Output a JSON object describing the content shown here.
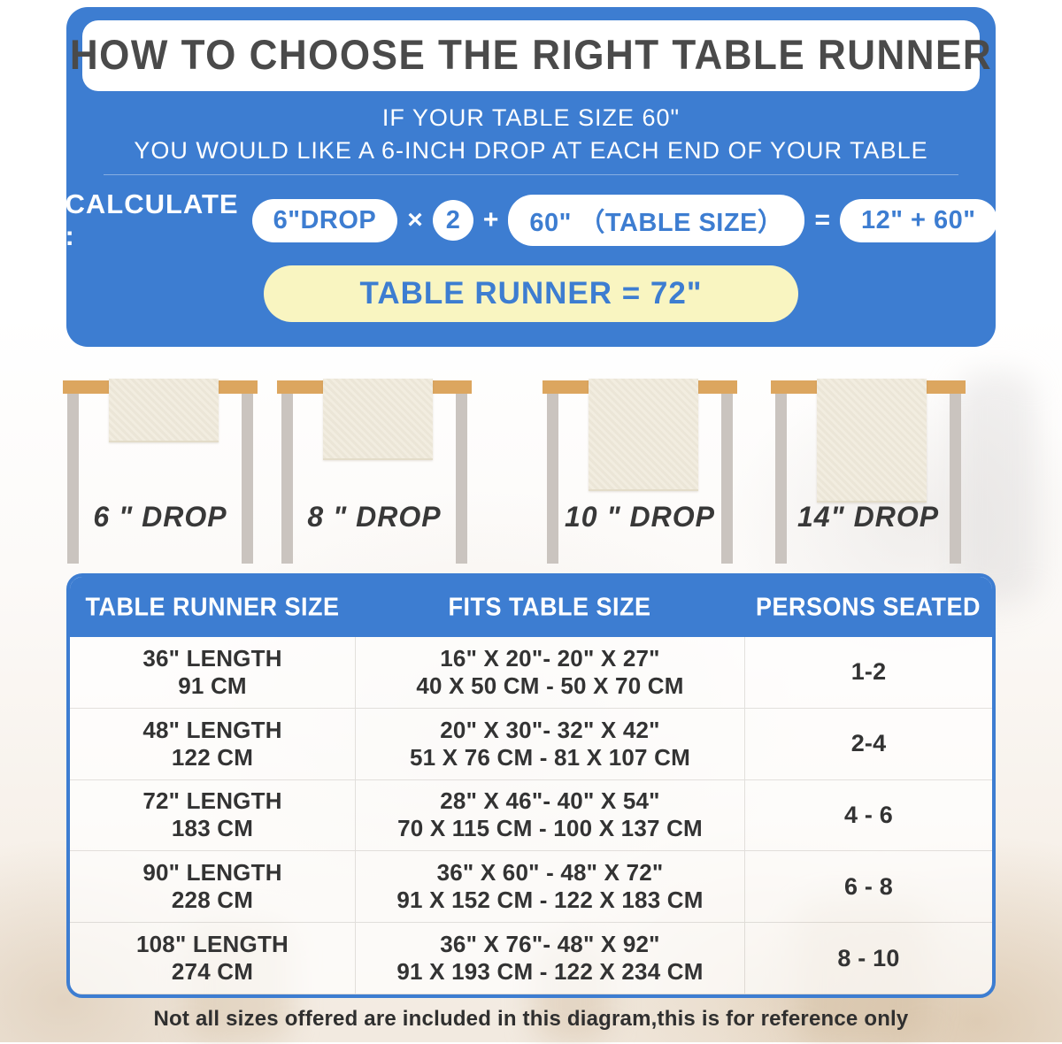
{
  "colors": {
    "accent_blue": "#3d7dd1",
    "highlight_yellow": "#f9f5c1",
    "tabletop_wood": "#dca65f",
    "leg_gray": "#cac4bf",
    "runner_cream": "#f2ede0"
  },
  "hero": {
    "title": "HOW TO CHOOSE THE RIGHT TABLE RUNNER",
    "sub_line1": "IF YOUR TABLE SIZE 60\"",
    "sub_line2": "YOU WOULD LIKE A 6-INCH DROP AT EACH END OF YOUR TABLE",
    "calculate_label": "CALCULATE :",
    "calc": {
      "drop_pill": "6\"DROP",
      "times": "×",
      "multiplier": "2",
      "plus": "+",
      "table_size_pill": "60\" （TABLE SIZE）",
      "equals": "=",
      "result_pill": "12\" + 60\""
    },
    "result_banner": "TABLE RUNNER = 72\""
  },
  "drops": [
    {
      "label": "6 \" DROP"
    },
    {
      "label": "8 \" DROP"
    },
    {
      "label": "10 \" DROP"
    },
    {
      "label": "14\" DROP"
    }
  ],
  "size_table": {
    "columns": [
      "TABLE RUNNER SIZE",
      "FITS TABLE SIZE",
      "PERSONS SEATED"
    ],
    "rows": [
      {
        "runner_in": "36\" LENGTH",
        "runner_cm": "91 CM",
        "fits_in": "16\" X 20\"- 20\" X 27\"",
        "fits_cm": "40 X 50 CM - 50 X 70 CM",
        "persons": "1-2"
      },
      {
        "runner_in": "48\" LENGTH",
        "runner_cm": "122 CM",
        "fits_in": "20\" X 30\"- 32\" X 42\"",
        "fits_cm": "51 X 76 CM - 81 X 107 CM",
        "persons": "2-4"
      },
      {
        "runner_in": "72\" LENGTH",
        "runner_cm": "183 CM",
        "fits_in": "28\" X 46\"- 40\" X 54\"",
        "fits_cm": "70 X 115 CM - 100 X 137 CM",
        "persons": "4 - 6"
      },
      {
        "runner_in": "90\" LENGTH",
        "runner_cm": "228 CM",
        "fits_in": "36\" X 60\" - 48\" X 72\"",
        "fits_cm": "91 X 152 CM - 122 X 183 CM",
        "persons": "6 - 8"
      },
      {
        "runner_in": "108\" LENGTH",
        "runner_cm": "274 CM",
        "fits_in": "36\" X 76\"- 48\" X 92\"",
        "fits_cm": "91 X 193 CM - 122 X 234 CM",
        "persons": "8 - 10"
      }
    ]
  },
  "footer_note": "Not all sizes offered are included in this diagram,this is for reference only"
}
